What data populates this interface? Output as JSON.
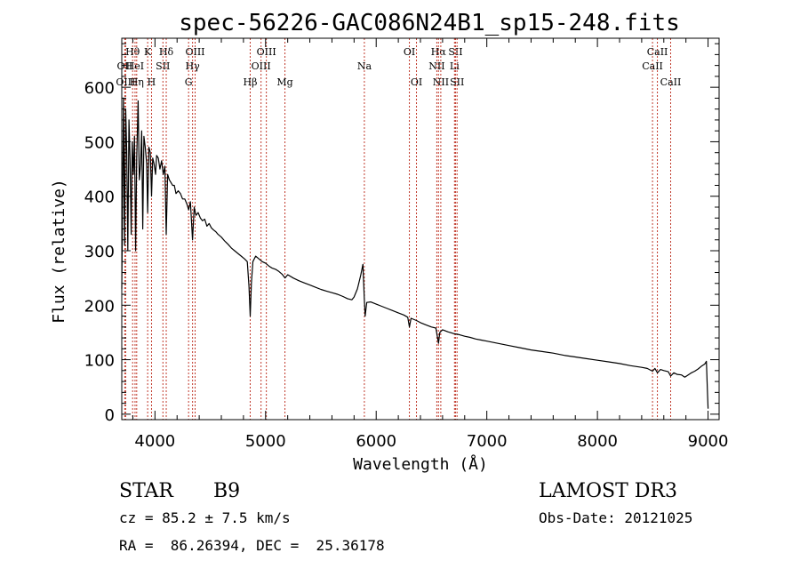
{
  "chart_data": {
    "type": "line",
    "title": "spec-56226-GAC086N24B1_sp15-248.fits",
    "xlabel": "Wavelength (Å)",
    "ylabel": "Flux (relative)",
    "xlim": [
      3700,
      9100
    ],
    "ylim": [
      -10,
      690
    ],
    "xticks": [
      4000,
      5000,
      6000,
      7000,
      8000,
      9000
    ],
    "yticks": [
      0,
      100,
      200,
      300,
      400,
      500,
      600
    ],
    "line_color": "#000000",
    "marker_color": "#c0392b",
    "lines": [
      {
        "label": "OII",
        "wavelength": 3727,
        "row": 2
      },
      {
        "label": "OIII",
        "wavelength": 3735,
        "row": 3
      },
      {
        "label": "Hθ",
        "wavelength": 3798,
        "row": 1
      },
      {
        "label": "HeI",
        "wavelength": 3820,
        "row": 2
      },
      {
        "label": "Hη",
        "wavelength": 3835,
        "row": 3
      },
      {
        "label": "K",
        "wavelength": 3934,
        "row": 1
      },
      {
        "label": "SII",
        "wavelength": 4072,
        "row": 2
      },
      {
        "label": "H",
        "wavelength": 3969,
        "row": 3
      },
      {
        "label": "Hδ",
        "wavelength": 4102,
        "row": 1
      },
      {
        "label": "OIII",
        "wavelength": 4363,
        "row": 1
      },
      {
        "label": "Hγ",
        "wavelength": 4340,
        "row": 2
      },
      {
        "label": "G",
        "wavelength": 4304,
        "row": 3
      },
      {
        "label": "OIII",
        "wavelength": 5007,
        "row": 1
      },
      {
        "label": "OIII",
        "wavelength": 4959,
        "row": 2
      },
      {
        "label": "Hβ",
        "wavelength": 4861,
        "row": 3
      },
      {
        "label": "Mg",
        "wavelength": 5175,
        "row": 3
      },
      {
        "label": "Na",
        "wavelength": 5893,
        "row": 2
      },
      {
        "label": "OI",
        "wavelength": 6300,
        "row": 1
      },
      {
        "label": "OI",
        "wavelength": 6364,
        "row": 3
      },
      {
        "label": "Hα",
        "wavelength": 6563,
        "row": 1
      },
      {
        "label": "NII",
        "wavelength": 6548,
        "row": 2
      },
      {
        "label": "NII",
        "wavelength": 6584,
        "row": 3
      },
      {
        "label": "SII",
        "wavelength": 6717,
        "row": 1
      },
      {
        "label": "Li",
        "wavelength": 6708,
        "row": 2
      },
      {
        "label": "SII",
        "wavelength": 6731,
        "row": 3
      },
      {
        "label": "CaII",
        "wavelength": 8542,
        "row": 1
      },
      {
        "label": "CaII",
        "wavelength": 8498,
        "row": 2
      },
      {
        "label": "CaII",
        "wavelength": 8662,
        "row": 3
      }
    ],
    "spectrum": [
      [
        3700,
        230
      ],
      [
        3715,
        580
      ],
      [
        3725,
        310
      ],
      [
        3735,
        560
      ],
      [
        3745,
        480
      ],
      [
        3755,
        300
      ],
      [
        3765,
        540
      ],
      [
        3775,
        470
      ],
      [
        3785,
        330
      ],
      [
        3795,
        500
      ],
      [
        3805,
        440
      ],
      [
        3815,
        510
      ],
      [
        3825,
        300
      ],
      [
        3835,
        470
      ],
      [
        3848,
        575
      ],
      [
        3858,
        430
      ],
      [
        3870,
        460
      ],
      [
        3880,
        520
      ],
      [
        3890,
        340
      ],
      [
        3900,
        510
      ],
      [
        3912,
        490
      ],
      [
        3925,
        460
      ],
      [
        3934,
        370
      ],
      [
        3945,
        490
      ],
      [
        3958,
        480
      ],
      [
        3969,
        400
      ],
      [
        3980,
        470
      ],
      [
        3992,
        460
      ],
      [
        4005,
        440
      ],
      [
        4015,
        475
      ],
      [
        4030,
        470
      ],
      [
        4045,
        450
      ],
      [
        4060,
        465
      ],
      [
        4075,
        440
      ],
      [
        4090,
        455
      ],
      [
        4102,
        330
      ],
      [
        4115,
        440
      ],
      [
        4130,
        430
      ],
      [
        4145,
        425
      ],
      [
        4160,
        420
      ],
      [
        4175,
        420
      ],
      [
        4190,
        405
      ],
      [
        4210,
        410
      ],
      [
        4230,
        405
      ],
      [
        4250,
        395
      ],
      [
        4270,
        395
      ],
      [
        4290,
        385
      ],
      [
        4304,
        375
      ],
      [
        4320,
        390
      ],
      [
        4340,
        320
      ],
      [
        4355,
        380
      ],
      [
        4370,
        365
      ],
      [
        4390,
        370
      ],
      [
        4410,
        360
      ],
      [
        4430,
        355
      ],
      [
        4450,
        358
      ],
      [
        4470,
        345
      ],
      [
        4490,
        350
      ],
      [
        4510,
        342
      ],
      [
        4530,
        338
      ],
      [
        4550,
        335
      ],
      [
        4570,
        330
      ],
      [
        4600,
        325
      ],
      [
        4630,
        318
      ],
      [
        4660,
        312
      ],
      [
        4690,
        305
      ],
      [
        4720,
        300
      ],
      [
        4750,
        295
      ],
      [
        4780,
        290
      ],
      [
        4810,
        285
      ],
      [
        4835,
        280
      ],
      [
        4850,
        235
      ],
      [
        4861,
        180
      ],
      [
        4872,
        240
      ],
      [
        4885,
        280
      ],
      [
        4910,
        290
      ],
      [
        4940,
        285
      ],
      [
        4970,
        280
      ],
      [
        5000,
        277
      ],
      [
        5030,
        272
      ],
      [
        5060,
        268
      ],
      [
        5090,
        266
      ],
      [
        5120,
        262
      ],
      [
        5150,
        257
      ],
      [
        5175,
        250
      ],
      [
        5200,
        256
      ],
      [
        5250,
        250
      ],
      [
        5300,
        245
      ],
      [
        5350,
        241
      ],
      [
        5400,
        237
      ],
      [
        5450,
        233
      ],
      [
        5500,
        229
      ],
      [
        5550,
        226
      ],
      [
        5600,
        223
      ],
      [
        5650,
        220
      ],
      [
        5700,
        216
      ],
      [
        5740,
        212
      ],
      [
        5780,
        210
      ],
      [
        5800,
        215
      ],
      [
        5830,
        230
      ],
      [
        5860,
        255
      ],
      [
        5880,
        275
      ],
      [
        5893,
        210
      ],
      [
        5900,
        180
      ],
      [
        5915,
        205
      ],
      [
        5950,
        206
      ],
      [
        6000,
        202
      ],
      [
        6050,
        198
      ],
      [
        6100,
        194
      ],
      [
        6150,
        190
      ],
      [
        6200,
        186
      ],
      [
        6250,
        182
      ],
      [
        6285,
        178
      ],
      [
        6300,
        160
      ],
      [
        6315,
        176
      ],
      [
        6364,
        172
      ],
      [
        6400,
        168
      ],
      [
        6450,
        164
      ],
      [
        6500,
        160
      ],
      [
        6540,
        158
      ],
      [
        6563,
        130
      ],
      [
        6575,
        150
      ],
      [
        6600,
        155
      ],
      [
        6650,
        151
      ],
      [
        6700,
        148
      ],
      [
        6750,
        146
      ],
      [
        6800,
        143
      ],
      [
        6850,
        141
      ],
      [
        6900,
        138
      ],
      [
        6950,
        136
      ],
      [
        7000,
        134
      ],
      [
        7100,
        130
      ],
      [
        7200,
        126
      ],
      [
        7300,
        122
      ],
      [
        7400,
        118
      ],
      [
        7500,
        115
      ],
      [
        7600,
        112
      ],
      [
        7700,
        108
      ],
      [
        7800,
        105
      ],
      [
        7900,
        102
      ],
      [
        8000,
        99
      ],
      [
        8100,
        96
      ],
      [
        8200,
        93
      ],
      [
        8300,
        89
      ],
      [
        8400,
        86
      ],
      [
        8450,
        84
      ],
      [
        8498,
        79
      ],
      [
        8520,
        84
      ],
      [
        8542,
        76
      ],
      [
        8570,
        82
      ],
      [
        8600,
        80
      ],
      [
        8640,
        78
      ],
      [
        8662,
        70
      ],
      [
        8690,
        76
      ],
      [
        8720,
        73
      ],
      [
        8760,
        72
      ],
      [
        8790,
        68
      ],
      [
        8820,
        72
      ],
      [
        8850,
        76
      ],
      [
        8880,
        79
      ],
      [
        8910,
        83
      ],
      [
        8940,
        88
      ],
      [
        8970,
        92
      ],
      [
        8985,
        97
      ],
      [
        8995,
        40
      ],
      [
        9000,
        10
      ]
    ]
  },
  "footer": {
    "object_class": "STAR",
    "subclass": "B9",
    "survey": "LAMOST DR3",
    "redshift": "cz = 85.2 ± 7.5 km/s",
    "obs_date": "Obs-Date: 20121025",
    "coords": "RA =  86.26394, DEC =  25.36178"
  }
}
